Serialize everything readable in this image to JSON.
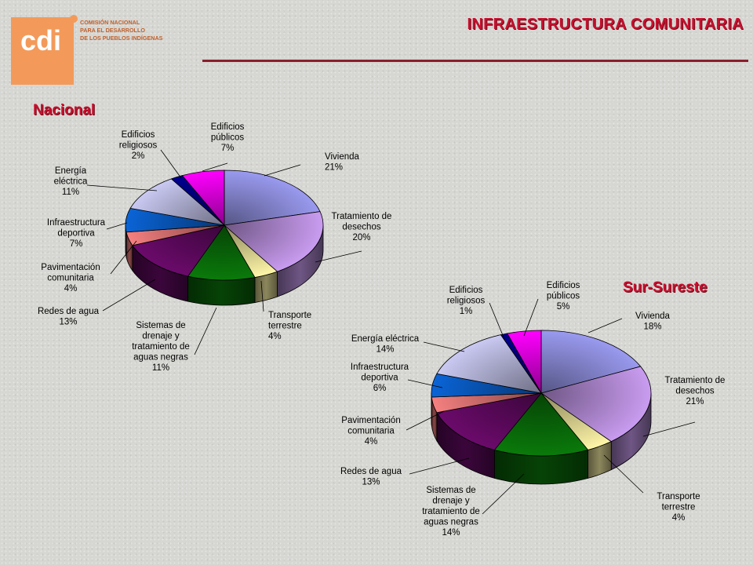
{
  "header": {
    "title": "INFRAESTRUCTURA COMUNITARIA",
    "logo": {
      "mark": "cdi",
      "lines": [
        "COMISIÓN NACIONAL",
        "PARA EL DESARROLLO",
        "DE LOS PUEBLOS INDÍGENAS"
      ]
    }
  },
  "colors": {
    "title": "#c8102e",
    "rule": "#8a1f2d",
    "logo": "#f39a5a"
  },
  "chart_data": [
    {
      "type": "pie",
      "title": "Nacional",
      "categories": [
        "Vivienda",
        "Tratamiento de desechos",
        "Transporte terrestre",
        "Sistemas de drenaje y tratamiento de aguas negras",
        "Redes de agua",
        "Pavimentación comunitaria",
        "Infraestructura deportiva",
        "Energía eléctrica",
        "Edificios religiosos",
        "Edificios públicos"
      ],
      "values": [
        21,
        20,
        4,
        11,
        13,
        4,
        7,
        11,
        2,
        7
      ],
      "labels": [
        "Vivienda\n21%",
        "Tratamiento de\ndesechos\n20%",
        "Transporte\nterrestre\n4%",
        "Sistemas de\ndrenaje y\ntratamiento de\naguas negras\n11%",
        "Redes de agua\n13%",
        "Pavimentación\ncomunitaria\n4%",
        "Infraestructura\ndeportiva\n7%",
        "Energía\neléctrica\n11%",
        "Edificios\nreligiosos\n2%",
        "Edificios\npúblicos\n7%"
      ],
      "colors": [
        "#9a9af0",
        "#c99cf0",
        "#fff6a8",
        "#0a7a0a",
        "#6b0a6b",
        "#f58080",
        "#0a64d6",
        "#c9c9f2",
        "#000090",
        "#ff00ff"
      ]
    },
    {
      "type": "pie",
      "title": "Sur-Sureste",
      "categories": [
        "Vivienda",
        "Tratamiento de desechos",
        "Transporte terrestre",
        "Sistemas de drenaje y tratamiento de aguas negras",
        "Redes de agua",
        "Pavimentación comunitaria",
        "Infraestructura deportiva",
        "Energía eléctrica",
        "Edificios religiosos",
        "Edificios públicos"
      ],
      "values": [
        18,
        21,
        4,
        14,
        13,
        4,
        6,
        14,
        1,
        5
      ],
      "labels": [
        "Vivienda\n18%",
        "Tratamiento de\ndesechos\n21%",
        "Transporte\nterrestre\n4%",
        "Sistemas de\ndrenaje y\ntratamiento de\naguas negras\n14%",
        "Redes de agua\n13%",
        "Pavimentación\ncomunitaria\n4%",
        "Infraestructura\ndeportiva\n6%",
        "Energía eléctrica\n14%",
        "Edificios\nreligiosos\n1%",
        "Edificios\npúblicos\n5%"
      ],
      "colors": [
        "#9a9af0",
        "#c99cf0",
        "#fff6a8",
        "#0a7a0a",
        "#6b0a6b",
        "#f58080",
        "#0a64d6",
        "#c9c9f2",
        "#000090",
        "#ff00ff"
      ]
    }
  ]
}
